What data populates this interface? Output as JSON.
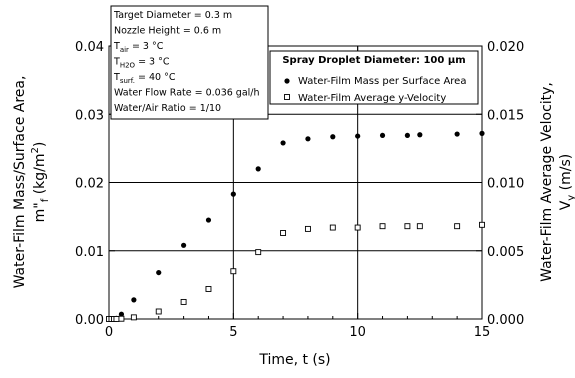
{
  "chart_data": {
    "type": "scatter",
    "xlabel": "Time, t (s)",
    "ylabel_left_line1": "Water-Film Mass/Surface Area,",
    "ylabel_left_line2": "m\"",
    "ylabel_left_sub": "f",
    "ylabel_left_unit": " (kg/m",
    "ylabel_left_sup": "2",
    "ylabel_left_close": ")",
    "ylabel_right_line1": "Water-Film Average Velocity,",
    "ylabel_right_line2": "V",
    "ylabel_right_sub": "y",
    "ylabel_right_unit": " (m/s)",
    "xlim": [
      0,
      15
    ],
    "ylim_left": [
      0,
      0.04
    ],
    "ylim_right": [
      0,
      0.02
    ],
    "x_ticks": [
      "0",
      "5",
      "10",
      "15"
    ],
    "y_left_ticks": [
      "0.00",
      "0.01",
      "0.02",
      "0.03",
      "0.04"
    ],
    "y_right_ticks": [
      "0.000",
      "0.005",
      "0.010",
      "0.015",
      "0.020"
    ],
    "grid": "major lines at x=5,10 and y=0.01,0.02,0.03",
    "title": "Spray Droplet Diameter:  100 μm",
    "series": [
      {
        "name": "Water-Film Mass per Surface Area",
        "axis": "left",
        "marker": "filled-circle",
        "x": [
          0,
          0.1,
          0.2,
          0.3,
          0.5,
          1,
          2,
          3,
          4,
          5,
          6,
          7,
          8,
          9,
          10,
          11,
          12,
          12.5,
          14,
          15
        ],
        "y": [
          0,
          0,
          0,
          0.0001,
          0.0007,
          0.0028,
          0.0068,
          0.0108,
          0.0145,
          0.0183,
          0.022,
          0.0258,
          0.0264,
          0.0267,
          0.0268,
          0.0269,
          0.0269,
          0.027,
          0.0271,
          0.0272
        ]
      },
      {
        "name": "Water-Film Average y-Velocity",
        "axis": "right",
        "marker": "open-square",
        "x": [
          0,
          0.1,
          0.2,
          0.3,
          0.5,
          1,
          2,
          3,
          4,
          5,
          6,
          7,
          8,
          9,
          10,
          11,
          12,
          12.5,
          14,
          15
        ],
        "y": [
          0,
          0,
          0,
          0,
          2e-05,
          0.00012,
          0.00055,
          0.00125,
          0.0022,
          0.0035,
          0.0049,
          0.0063,
          0.0066,
          0.0067,
          0.0067,
          0.0068,
          0.0068,
          0.0068,
          0.0068,
          0.0069
        ]
      }
    ],
    "info_box": [
      {
        "main": "Target Diameter = 0.3 m"
      },
      {
        "main": "Nozzle Height = 0.6 m"
      },
      {
        "main": "T",
        "sub": "air",
        "rest": " = 3 °C"
      },
      {
        "main": "T",
        "sub": "H2O",
        "rest": " = 3 °C"
      },
      {
        "main": "T",
        "sub": "surf.",
        "rest": " = 40 °C"
      },
      {
        "main": "Water Flow Rate = 0.036 gal/h"
      },
      {
        "main": "Water/Air Ratio = 1/10"
      }
    ]
  }
}
